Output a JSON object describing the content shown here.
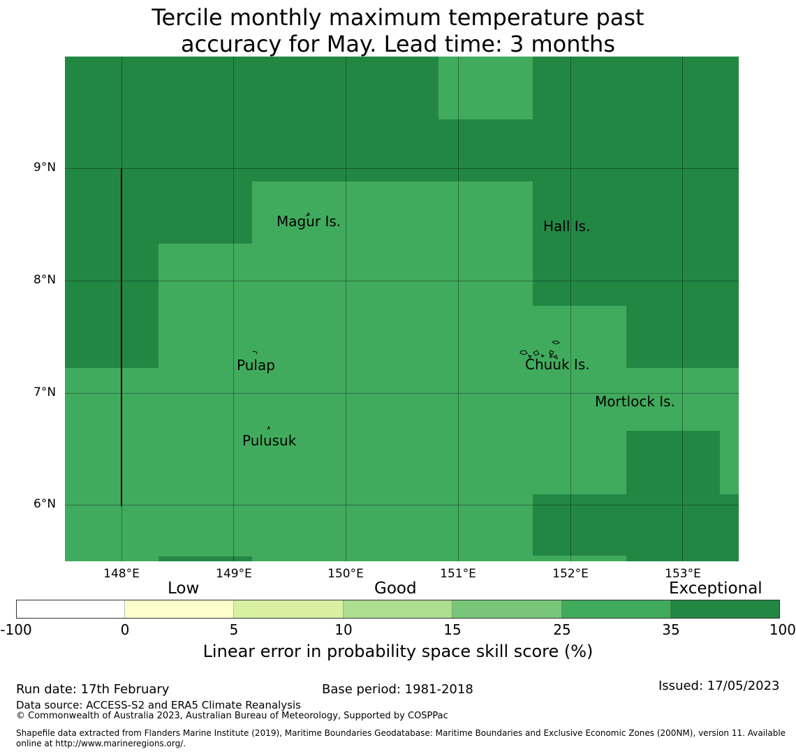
{
  "title_line1": "Tercile monthly maximum temperature past",
  "title_line2": "accuracy for May. Lead time: 3 months",
  "colors": {
    "exceptional": "#238744",
    "high": "#41ab5d",
    "gridline": "#000000",
    "scale": [
      "#ffffff",
      "#ffffcc",
      "#d9f0a3",
      "#addd8e",
      "#78c679",
      "#41ab5d",
      "#238744"
    ]
  },
  "map": {
    "lat_ticks": [
      "9°N",
      "8°N",
      "7°N",
      "6°N"
    ],
    "lon_ticks": [
      "148°E",
      "149°E",
      "150°E",
      "151°E",
      "152°E",
      "153°E"
    ],
    "places": [
      "Magur Is.",
      "Hall Is.",
      "Pulap",
      "Chuuk Is.",
      "Mortlock Is.",
      "Pulusuk"
    ]
  },
  "colorbar": {
    "categories": [
      "Low",
      "Good",
      "Exceptional"
    ],
    "ticks": [
      "-100",
      "0",
      "5",
      "10",
      "15",
      "25",
      "35",
      "100"
    ],
    "label": "Linear error in probability space skill score (%)"
  },
  "footer": {
    "run_date": "Run date: 17th February",
    "base_period": "Base period: 1981-2018",
    "issued": "Issued: 17/05/2023",
    "data_source": "Data source: ACCESS-S2 and ERA5 Climate Reanalysis",
    "copyright": "© Commonwealth of Australia 2023, Australian Bureau of Meteorology, Supported by COSPPac",
    "shapefile_line1": "Shapefile data extracted from Flanders Marine Institute (2019), Maritime Boundaries Geodatabase: Maritime Boundaries and Exclusive Economic Zones (200NM), version 11. Available",
    "shapefile_line2": "online at http://www.marineregions.org/."
  }
}
